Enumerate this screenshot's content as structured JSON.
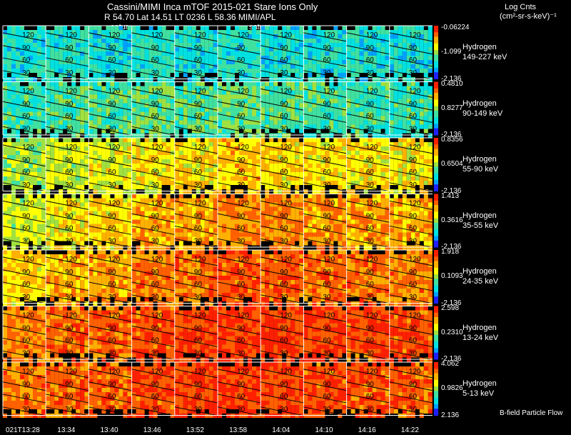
{
  "header": {
    "title": "Cassini/MIMI Inca mTOF  2015-021   Stare   Ions Only",
    "info": "R        54.70 Lat 14.51 LT 0236 L        58.36  MIMI/APL",
    "units_line1": "Log Cnts",
    "units_line2": "(cm²-sr-s-keV)⁻¹"
  },
  "labels": {
    "saturn_left": "satur",
    "saturn_right": "saturn",
    "flow": "B-field Particle Flow"
  },
  "chart_data": {
    "type": "heatmap",
    "x_tick_labels": [
      "021T13:28",
      "13:34",
      "13:40",
      "13:46",
      "13:52",
      "13:58",
      "14:04",
      "14:10",
      "14:16",
      "14:22"
    ],
    "pitch_angle_labels": [
      "120",
      "90",
      "60",
      "30"
    ],
    "colormap": [
      "#2020ff",
      "#00a0ff",
      "#00e0e0",
      "#40e0a0",
      "#a0e040",
      "#ffff00",
      "#ffb000",
      "#ff6000",
      "#ff2000"
    ],
    "panels": [
      {
        "species": "Hydrogen",
        "energy": "149-227 keV",
        "cb_max": "-0.06224",
        "cb_mid": "-1.099",
        "cb_min": "-2.136",
        "levels": [
          0.3,
          0.32,
          0.3,
          0.33,
          0.31,
          0.32,
          0.3,
          0.31,
          0.3,
          0.3
        ]
      },
      {
        "species": "Hydrogen",
        "energy": "90-149 keV",
        "cb_max": "0.4810",
        "cb_mid": "0.8277",
        "cb_min": "-2.136",
        "levels": [
          0.35,
          0.38,
          0.4,
          0.42,
          0.4,
          0.42,
          0.4,
          0.38,
          0.37,
          0.36
        ]
      },
      {
        "species": "Hydrogen",
        "energy": "55-90 keV",
        "cb_max": "0.8356",
        "cb_mid": "0.6504",
        "cb_min": "-2.136",
        "levels": [
          0.5,
          0.55,
          0.58,
          0.63,
          0.65,
          0.68,
          0.66,
          0.65,
          0.63,
          0.62
        ]
      },
      {
        "species": "Hydrogen",
        "energy": "35-55 keV",
        "cb_max": "1.413",
        "cb_mid": "0.3616",
        "cb_min": "-2.136",
        "levels": [
          0.55,
          0.62,
          0.66,
          0.72,
          0.75,
          0.78,
          0.78,
          0.76,
          0.74,
          0.72
        ]
      },
      {
        "species": "Hydrogen",
        "energy": "24-35 keV",
        "cb_max": "1.918",
        "cb_mid": "0.1093",
        "cb_min": "-2.136",
        "levels": [
          0.66,
          0.72,
          0.75,
          0.8,
          0.82,
          0.85,
          0.84,
          0.82,
          0.8,
          0.78
        ]
      },
      {
        "species": "Hydrogen",
        "energy": "13-24 keV",
        "cb_max": "2.598",
        "cb_mid": "0.2310",
        "cb_min": "-2.136",
        "levels": [
          0.78,
          0.82,
          0.84,
          0.88,
          0.9,
          0.92,
          0.91,
          0.9,
          0.88,
          0.87
        ]
      },
      {
        "species": "Hydrogen",
        "energy": "5-13 keV",
        "cb_max": "4.062",
        "cb_mid": "0.9826",
        "cb_min": "2.136",
        "levels": [
          0.8,
          0.83,
          0.85,
          0.88,
          0.9,
          0.91,
          0.9,
          0.88,
          0.86,
          0.85
        ]
      }
    ]
  }
}
